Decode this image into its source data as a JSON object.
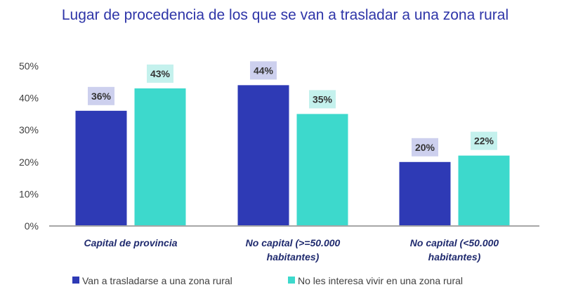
{
  "chart_data": {
    "type": "bar",
    "title": "Lugar de procedencia de los que se van a trasladar a una zona rural",
    "categories": [
      [
        "Capital de provincia"
      ],
      [
        "No capital (>=50.000",
        "habitantes)"
      ],
      [
        "No capital (<50.000",
        "habitantes)"
      ]
    ],
    "series": [
      {
        "name": "Van a trasladarse a una zona rural",
        "values": [
          36,
          44,
          20
        ],
        "labels": [
          "36%",
          "44%",
          "20%"
        ],
        "color": "#2e3ab5",
        "label_bg": "#cdd0ee"
      },
      {
        "name": "No les interesa vivir en una zona rural",
        "values": [
          43,
          35,
          22
        ],
        "labels": [
          "43%",
          "35%",
          "22%"
        ],
        "color": "#3dd9cc",
        "label_bg": "#c4f1ed"
      }
    ],
    "yticks": [
      "0%",
      "10%",
      "20%",
      "30%",
      "40%",
      "50%"
    ],
    "ylim": [
      0,
      50
    ],
    "grid": false,
    "legend_position": "bottom-left",
    "axis_color": "#a6a6a6"
  }
}
